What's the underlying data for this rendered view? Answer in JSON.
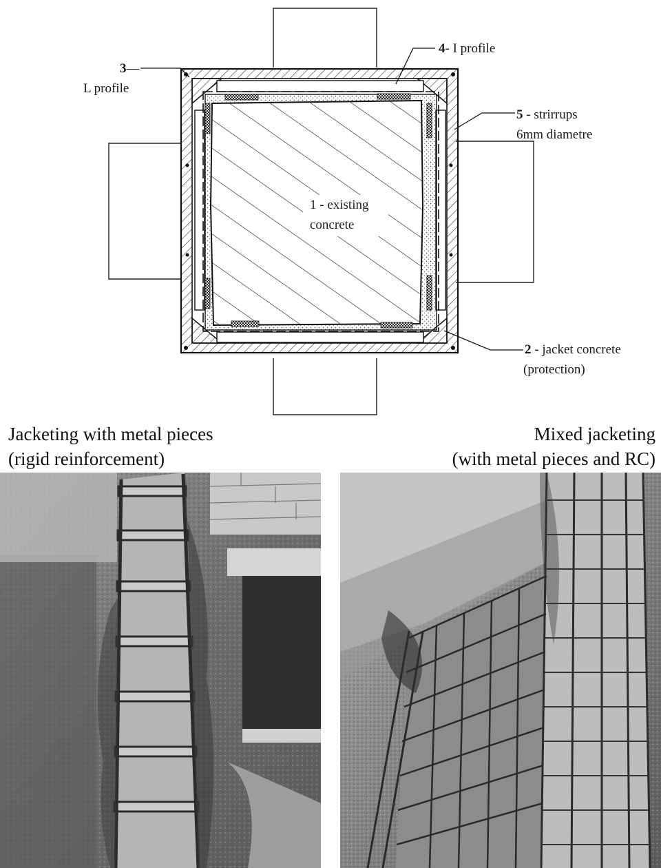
{
  "labels": {
    "l_profile_num": "3",
    "l_profile_dash": "—",
    "l_profile_text": "L profile",
    "i_profile_num": "4",
    "i_profile_text": "- I profile",
    "strirrups_num": "5",
    "strirrups_line1": " - strirrups",
    "strirrups_line2": "6mm diametre",
    "existing_num": "1",
    "existing_line1": " - existing",
    "existing_line2": "concrete",
    "jacket_num": "2",
    "jacket_line1": " - jacket concrete",
    "jacket_line2": "(protection)"
  },
  "captions": {
    "left_line1": "Jacketing with metal pieces",
    "left_line2": "(rigid reinforcement)",
    "right_line1": "Mixed jacketing",
    "right_line2": "(with metal pieces and RC)"
  },
  "colors": {
    "ink": "#1a1a1a",
    "photo_dark": "#3a3a3a",
    "photo_mid": "#8a8a8a",
    "photo_light": "#d8d8d8"
  }
}
